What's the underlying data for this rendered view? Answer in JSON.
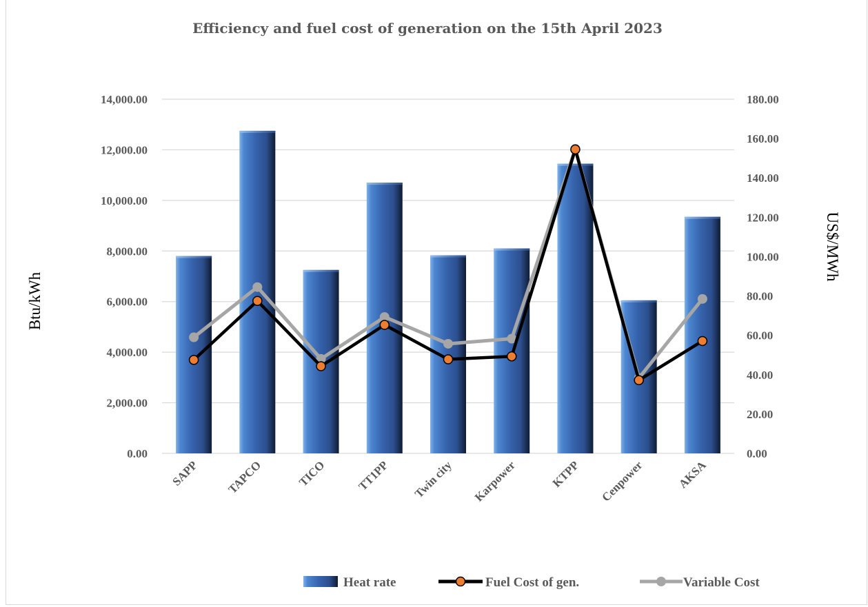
{
  "chart_data": {
    "type": "bar",
    "title": "Efficiency and fuel cost of generation on the 15th April 2023",
    "categories": [
      "SAPP",
      "TAPCO",
      "TICO",
      "TT1PP",
      "Twin city",
      "Karpower",
      "KTPP",
      "Cenpower",
      "AKSA"
    ],
    "y_left": {
      "label": "Btu/kWh",
      "range": [
        0,
        14000
      ],
      "ticks": [
        "0.00",
        "2,000.00",
        "4,000.00",
        "6,000.00",
        "8,000.00",
        "10,000.00",
        "12,000.00",
        "14,000.00"
      ]
    },
    "y_right": {
      "label": "US$/MWh",
      "range": [
        0,
        180
      ],
      "ticks": [
        "0.00",
        "20.00",
        "40.00",
        "60.00",
        "80.00",
        "100.00",
        "120.00",
        "140.00",
        "160.00",
        "180.00"
      ]
    },
    "grid": true,
    "legend_position": "bottom-right",
    "series": [
      {
        "name": "Heat rate",
        "type": "bar",
        "axis": "left",
        "color": "#2e5aa0",
        "values": [
          7800,
          12750,
          7250,
          10700,
          7830,
          8100,
          11450,
          6050,
          9350
        ]
      },
      {
        "name": "Fuel Cost of gen.",
        "type": "line",
        "axis": "right",
        "color": "#000000",
        "marker_color": "#ed7d31",
        "values": [
          47.5,
          77.5,
          44.3,
          65.3,
          47.8,
          49.3,
          154.5,
          37.2,
          57.1
        ]
      },
      {
        "name": "Variable Cost",
        "type": "line",
        "axis": "right",
        "color": "#a6a6a6",
        "marker_color": "#a6a6a6",
        "values": [
          59.0,
          84.5,
          48.0,
          69.3,
          55.7,
          58.3,
          154.8,
          38.3,
          78.5
        ]
      }
    ]
  }
}
